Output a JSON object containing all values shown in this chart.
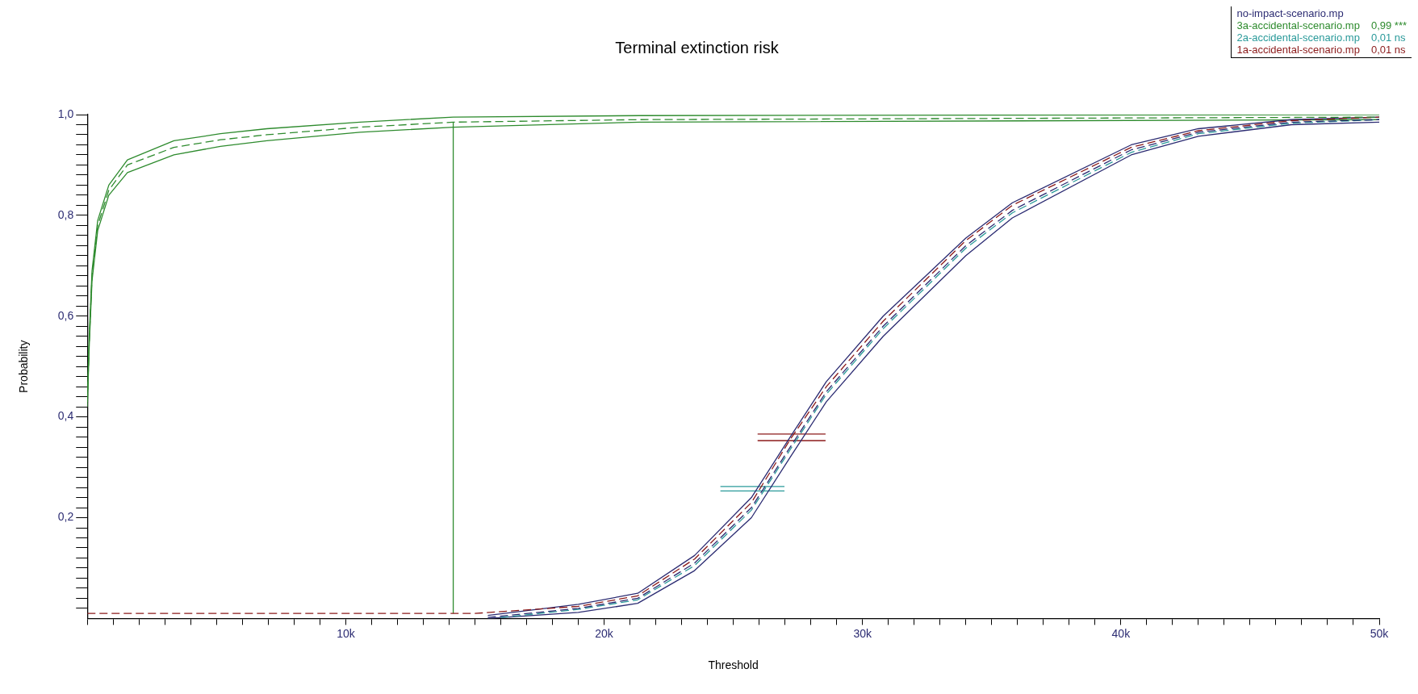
{
  "chart_data": {
    "type": "line",
    "title": "Terminal extinction risk",
    "xlabel": "Threshold",
    "ylabel": "Probability",
    "legend": "top right",
    "marker": "none",
    "xlim": [
      0,
      50000
    ],
    "xticks": [
      {
        "value": 0,
        "label": null
      },
      {
        "value": 1000,
        "label": null
      },
      {
        "value": 2000,
        "label": null
      },
      {
        "value": 3000,
        "label": null
      },
      {
        "value": 4000,
        "label": null
      },
      {
        "value": 5000,
        "label": null
      },
      {
        "value": 6000,
        "label": null
      },
      {
        "value": 7000,
        "label": null
      },
      {
        "value": 8000,
        "label": null
      },
      {
        "value": 9000,
        "label": null
      },
      {
        "value": 10000,
        "label": "10k"
      },
      {
        "value": 11000,
        "label": null
      },
      {
        "value": 12000,
        "label": null
      },
      {
        "value": 13000,
        "label": null
      },
      {
        "value": 14000,
        "label": null
      },
      {
        "value": 15000,
        "label": null
      },
      {
        "value": 16000,
        "label": null
      },
      {
        "value": 17000,
        "label": null
      },
      {
        "value": 18000,
        "label": null
      },
      {
        "value": 19000,
        "label": null
      },
      {
        "value": 20000,
        "label": "20k"
      },
      {
        "value": 21000,
        "label": null
      },
      {
        "value": 22000,
        "label": null
      },
      {
        "value": 23000,
        "label": null
      },
      {
        "value": 24000,
        "label": null
      },
      {
        "value": 25000,
        "label": null
      },
      {
        "value": 26000,
        "label": null
      },
      {
        "value": 27000,
        "label": null
      },
      {
        "value": 28000,
        "label": null
      },
      {
        "value": 29000,
        "label": null
      },
      {
        "value": 30000,
        "label": "30k"
      },
      {
        "value": 31000,
        "label": null
      },
      {
        "value": 32000,
        "label": null
      },
      {
        "value": 33000,
        "label": null
      },
      {
        "value": 34000,
        "label": null
      },
      {
        "value": 35000,
        "label": null
      },
      {
        "value": 36000,
        "label": null
      },
      {
        "value": 37000,
        "label": null
      },
      {
        "value": 38000,
        "label": null
      },
      {
        "value": 39000,
        "label": null
      },
      {
        "value": 40000,
        "label": "40k"
      },
      {
        "value": 41000,
        "label": null
      },
      {
        "value": 42000,
        "label": null
      },
      {
        "value": 43000,
        "label": null
      },
      {
        "value": 44000,
        "label": null
      },
      {
        "value": 45000,
        "label": null
      },
      {
        "value": 46000,
        "label": null
      },
      {
        "value": 47000,
        "label": null
      },
      {
        "value": 48000,
        "label": null
      },
      {
        "value": 49000,
        "label": null
      },
      {
        "value": 50000,
        "label": "50k"
      }
    ],
    "ylim": [
      0,
      1
    ],
    "yticks": [
      {
        "value": 0.02,
        "label": null
      },
      {
        "value": 0.04,
        "label": null
      },
      {
        "value": 0.06,
        "label": null
      },
      {
        "value": 0.08,
        "label": null
      },
      {
        "value": 0.1,
        "label": null
      },
      {
        "value": 0.12,
        "label": null
      },
      {
        "value": 0.14,
        "label": null
      },
      {
        "value": 0.16,
        "label": null
      },
      {
        "value": 0.18,
        "label": null
      },
      {
        "value": 0.2,
        "label": "0,2"
      },
      {
        "value": 0.22,
        "label": null
      },
      {
        "value": 0.24,
        "label": null
      },
      {
        "value": 0.26,
        "label": null
      },
      {
        "value": 0.28,
        "label": null
      },
      {
        "value": 0.3,
        "label": null
      },
      {
        "value": 0.32,
        "label": null
      },
      {
        "value": 0.34,
        "label": null
      },
      {
        "value": 0.36,
        "label": null
      },
      {
        "value": 0.38,
        "label": null
      },
      {
        "value": 0.4,
        "label": "0,4"
      },
      {
        "value": 0.42,
        "label": null
      },
      {
        "value": 0.44,
        "label": null
      },
      {
        "value": 0.46,
        "label": null
      },
      {
        "value": 0.48,
        "label": null
      },
      {
        "value": 0.5,
        "label": null
      },
      {
        "value": 0.52,
        "label": null
      },
      {
        "value": 0.54,
        "label": null
      },
      {
        "value": 0.56,
        "label": null
      },
      {
        "value": 0.58,
        "label": null
      },
      {
        "value": 0.6,
        "label": "0,6"
      },
      {
        "value": 0.62,
        "label": null
      },
      {
        "value": 0.64,
        "label": null
      },
      {
        "value": 0.66,
        "label": null
      },
      {
        "value": 0.68,
        "label": null
      },
      {
        "value": 0.7,
        "label": null
      },
      {
        "value": 0.72,
        "label": null
      },
      {
        "value": 0.74,
        "label": null
      },
      {
        "value": 0.76,
        "label": null
      },
      {
        "value": 0.78,
        "label": null
      },
      {
        "value": 0.8,
        "label": "0,8"
      },
      {
        "value": 0.82,
        "label": null
      },
      {
        "value": 0.84,
        "label": null
      },
      {
        "value": 0.86,
        "label": null
      },
      {
        "value": 0.88,
        "label": null
      },
      {
        "value": 0.9,
        "label": null
      },
      {
        "value": 0.92,
        "label": null
      },
      {
        "value": 0.94,
        "label": null
      },
      {
        "value": 0.96,
        "label": null
      },
      {
        "value": 0.98,
        "label": null
      },
      {
        "value": 1,
        "label": "1,0"
      }
    ],
    "series": [
      {
        "name": "no-impact-scenario.mp",
        "color": "#2b2b72",
        "line_style": "dashed",
        "x": [
          15500,
          19000,
          21300,
          23500,
          25700,
          27200,
          28600,
          30800,
          34000,
          35800,
          40400,
          43000,
          46600,
          50000
        ],
        "values": [
          0.002,
          0.02,
          0.04,
          0.11,
          0.22,
          0.34,
          0.45,
          0.58,
          0.74,
          0.81,
          0.93,
          0.965,
          0.985,
          0.99
        ]
      },
      {
        "name": "3a-accidental-scenario.mp",
        "color": "#2e8b2e",
        "line_style": "dashed",
        "x": [
          0,
          72,
          180,
          400,
          830,
          1550,
          3350,
          5150,
          6950,
          10550,
          14160,
          21400,
          50000
        ],
        "values": [
          0.43,
          0.55,
          0.68,
          0.78,
          0.85,
          0.9,
          0.935,
          0.95,
          0.96,
          0.975,
          0.985,
          0.99,
          0.995
        ]
      },
      {
        "name": "2a-accidental-scenario.mp",
        "color": "#2a9a9a",
        "line_style": "dashed",
        "x": [
          16000,
          19000,
          21300,
          23500,
          25700,
          27200,
          28600,
          30800,
          34000,
          35800,
          40400,
          43000,
          46600,
          50000
        ],
        "values": [
          0.002,
          0.018,
          0.037,
          0.105,
          0.215,
          0.335,
          0.445,
          0.575,
          0.735,
          0.805,
          0.925,
          0.962,
          0.983,
          0.99
        ]
      },
      {
        "name": "1a-accidental-scenario.mp",
        "color": "#8b1a1a",
        "line_style": "dashed",
        "x": [
          0,
          15000,
          19000,
          21300,
          23500,
          25700,
          27200,
          28600,
          30800,
          34000,
          35800,
          40400,
          43000,
          46600,
          50000
        ],
        "values": [
          0.01,
          0.01,
          0.024,
          0.045,
          0.118,
          0.23,
          0.355,
          0.46,
          0.59,
          0.75,
          0.82,
          0.935,
          0.968,
          0.988,
          0.995
        ]
      },
      {
        "color": "#2b2b72",
        "line_style": "solid",
        "x": [
          15500,
          19000,
          21300,
          23500,
          25700,
          27200,
          28600,
          30800,
          34000,
          35800,
          40400,
          43000,
          46600,
          50000
        ],
        "values": [
          0.0,
          0.012,
          0.03,
          0.095,
          0.2,
          0.32,
          0.43,
          0.56,
          0.72,
          0.795,
          0.92,
          0.957,
          0.98,
          0.985
        ]
      },
      {
        "color": "#2b2b72",
        "line_style": "solid",
        "x": [
          15500,
          19000,
          21300,
          23500,
          25700,
          27200,
          28600,
          30800,
          34000,
          35800,
          40400,
          43000,
          46600,
          50000
        ],
        "values": [
          0.006,
          0.028,
          0.05,
          0.125,
          0.24,
          0.36,
          0.47,
          0.6,
          0.755,
          0.825,
          0.94,
          0.972,
          0.99,
          0.995
        ]
      },
      {
        "color": "#2e8b2e",
        "line_style": "solid",
        "x": [
          0,
          72,
          180,
          400,
          830,
          1550,
          3350,
          5150,
          6950,
          10550,
          14160,
          21400,
          50000
        ],
        "values": [
          0.42,
          0.54,
          0.67,
          0.77,
          0.84,
          0.885,
          0.92,
          0.937,
          0.948,
          0.965,
          0.975,
          0.985,
          0.99
        ]
      },
      {
        "color": "#2e8b2e",
        "line_style": "solid",
        "x": [
          0,
          72,
          180,
          400,
          830,
          1550,
          3350,
          5150,
          6950,
          10550,
          14160,
          21400,
          50000
        ],
        "values": [
          0.44,
          0.56,
          0.69,
          0.79,
          0.86,
          0.91,
          0.948,
          0.962,
          0.972,
          0.985,
          0.995,
          0.998,
          1.0
        ]
      },
      {
        "color": "#2e8b2e",
        "line_style": "solid",
        "x": [
          14160,
          14160
        ],
        "values": [
          0.01,
          0.985
        ]
      },
      {
        "color": "#2a9a9a",
        "line_style": "solid",
        "x": [
          24500,
          26980
        ],
        "values": [
          0.262,
          0.262
        ]
      },
      {
        "color": "#2a9a9a",
        "line_style": "solid",
        "x": [
          24500,
          26980
        ],
        "values": [
          0.253,
          0.253
        ]
      },
      {
        "color": "#8b1a1a",
        "line_style": "solid",
        "x": [
          25940,
          28570
        ],
        "values": [
          0.366,
          0.366
        ]
      },
      {
        "color": "#8b1a1a",
        "line_style": "solid",
        "x": [
          25940,
          28570
        ],
        "values": [
          0.353,
          0.353
        ]
      }
    ],
    "annotations": [
      "0,99 ***",
      "0,01 ns",
      "0,01 ns"
    ]
  }
}
